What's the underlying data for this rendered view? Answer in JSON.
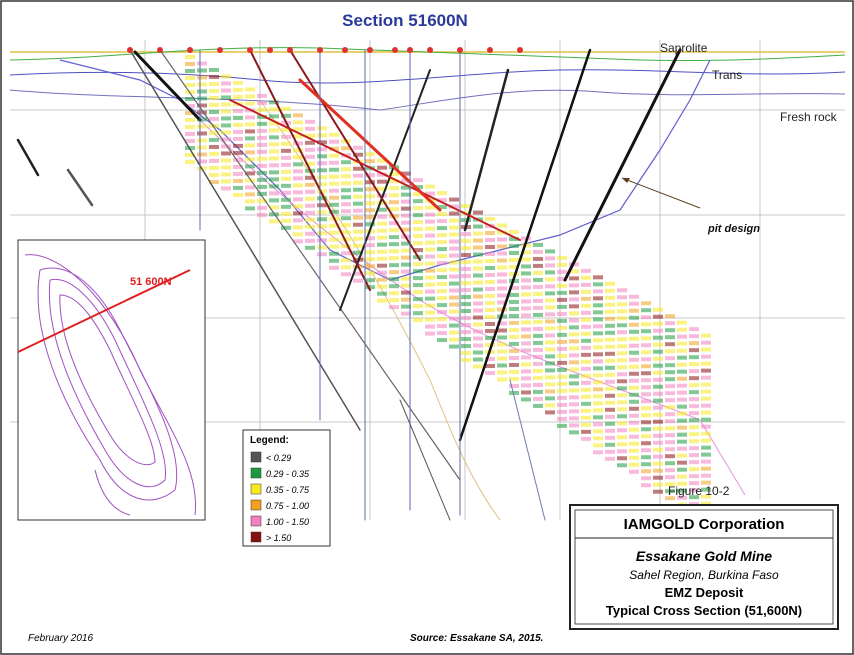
{
  "section_title": "Section 51600N",
  "zone_labels": [
    "Saprolite",
    "Trans",
    "Fresh rock"
  ],
  "pit_label": "pit design",
  "inset": {
    "section_label": "51 600N"
  },
  "legend": {
    "title": "Legend:",
    "items": [
      {
        "label": "< 0.29",
        "color": "#555555"
      },
      {
        "label": "0.29 - 0.35",
        "color": "#1a9a3c"
      },
      {
        "label": "0.35 - 0.75",
        "color": "#f5ea1a"
      },
      {
        "label": "0.75 - 1.00",
        "color": "#f2a020"
      },
      {
        "label": "1.00 - 1.50",
        "color": "#f080c0"
      },
      {
        "label": "> 1.50",
        "color": "#8a1010"
      }
    ]
  },
  "figure_label": "Figure 10-2",
  "title_block": {
    "company": "IAMGOLD Corporation",
    "mine": "Essakane Gold Mine",
    "region": "Sahel Region, Burkina Faso",
    "deposit": "EMZ Deposit",
    "section": "Typical Cross Section (51,600N)"
  },
  "footer": {
    "date": "February 2016",
    "source": "Source: Essakane SA, 2015."
  }
}
